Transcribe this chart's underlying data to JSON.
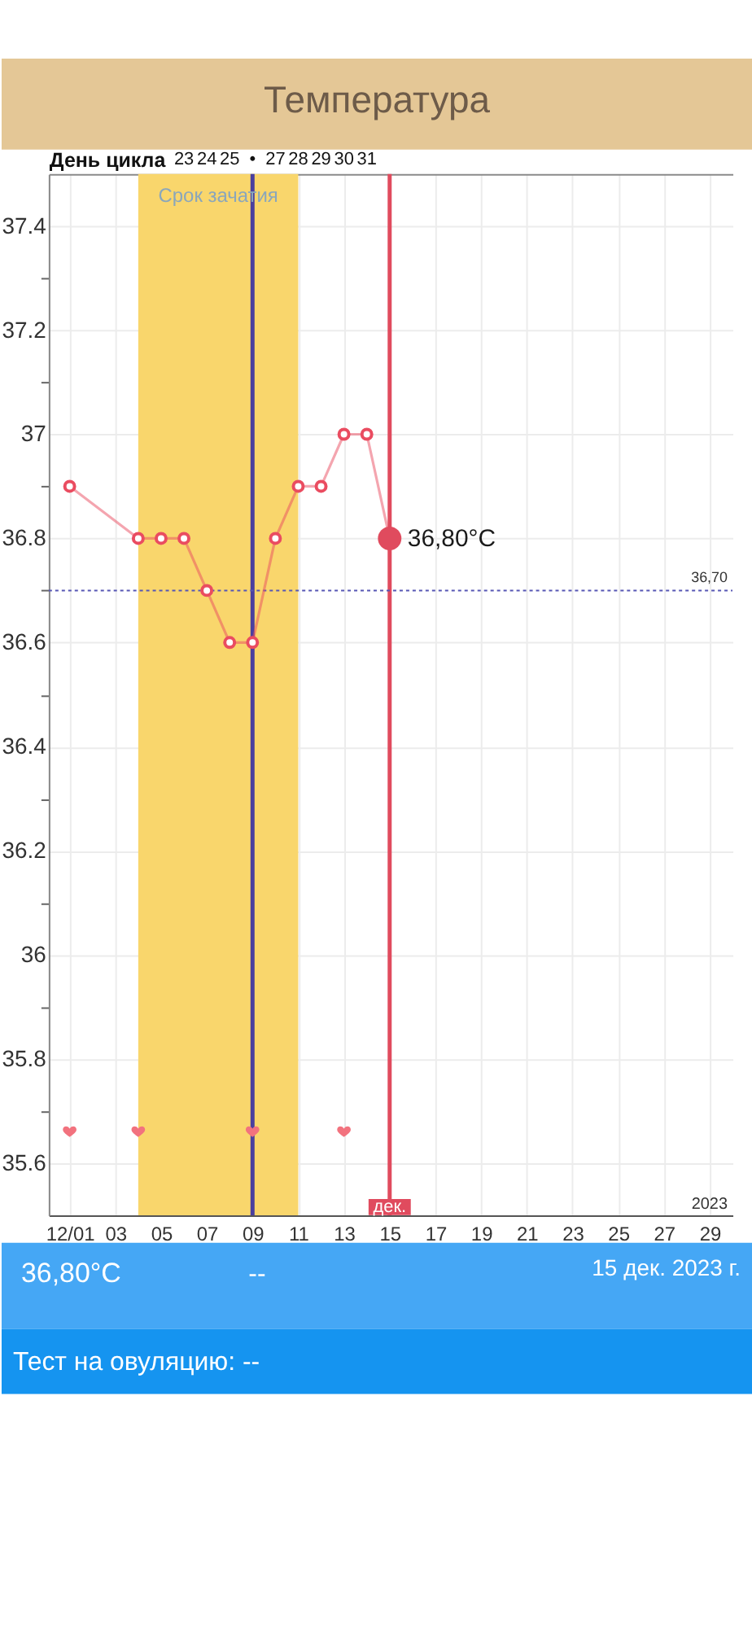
{
  "chart_data": {
    "type": "line",
    "title": "Температура",
    "x2label": "День цикла",
    "xlim": [
      "2023-11-30T02:00",
      "2023-12-30"
    ],
    "xticks": [
      {
        "value": "2023-12-01",
        "label": "12/01"
      },
      {
        "value": "2023-12-03",
        "label": "03"
      },
      {
        "value": "2023-12-05",
        "label": "05"
      },
      {
        "value": "2023-12-07",
        "label": "07"
      },
      {
        "value": "2023-12-09",
        "label": "09"
      },
      {
        "value": "2023-12-11",
        "label": "11"
      },
      {
        "value": "2023-12-13",
        "label": "13"
      },
      {
        "value": "2023-12-15",
        "label": "15"
      },
      {
        "value": "2023-12-17",
        "label": "17"
      },
      {
        "value": "2023-12-19",
        "label": "19"
      },
      {
        "value": "2023-12-21",
        "label": "21"
      },
      {
        "value": "2023-12-23",
        "label": "23"
      },
      {
        "value": "2023-12-25",
        "label": "25"
      },
      {
        "value": "2023-12-27",
        "label": "27"
      },
      {
        "value": "2023-12-29",
        "label": "29"
      }
    ],
    "x2lim": [
      17.08,
      47
    ],
    "x2ticks": [
      23,
      24,
      25,
      {
        "value": 26,
        "label": "•"
      },
      27,
      28,
      29,
      30,
      31
    ],
    "ylim": [
      35.5,
      37.5
    ],
    "yticks": [
      35.6,
      {
        "value": 35.7,
        "label": null
      },
      35.8,
      {
        "value": 35.9,
        "label": null
      },
      36,
      {
        "value": 36.1,
        "label": null
      },
      36.2,
      {
        "value": 36.3,
        "label": null
      },
      36.4,
      {
        "value": 36.5,
        "label": null
      },
      36.6,
      {
        "value": 36.7,
        "label": null
      },
      36.8,
      {
        "value": 36.9,
        "label": null
      },
      37,
      {
        "value": 37.1,
        "label": null
      },
      37.2,
      {
        "value": 37.3,
        "label": null
      },
      37.4
    ],
    "grid": true,
    "bands": [
      {
        "axis": "x",
        "from": "2023-12-04",
        "to": "2023-12-11",
        "label": "Срок зачатия",
        "color": "#f9d66c"
      }
    ],
    "ref_lines": [
      {
        "axis": "x",
        "value": "2023-12-09",
        "color": "#4a3f9f"
      },
      {
        "axis": "x",
        "value": "2023-12-15",
        "label": "дек.",
        "color": "#e04b5e"
      },
      {
        "axis": "y",
        "value": 36.7,
        "label": "36,70",
        "color": "#5656b4",
        "line_style": "dotted"
      }
    ],
    "series": [
      {
        "marker": "circle",
        "color": "#ea4c60",
        "x": [
          "2023-12-01",
          "2023-12-04",
          "2023-12-05",
          "2023-12-06",
          "2023-12-07",
          "2023-12-08",
          "2023-12-09",
          "2023-12-10",
          "2023-12-11",
          "2023-12-12",
          "2023-12-13",
          "2023-12-14",
          "2023-12-15"
        ],
        "values": [
          36.9,
          36.8,
          36.8,
          36.8,
          36.7,
          36.6,
          36.6,
          36.8,
          36.9,
          36.9,
          37.0,
          37.0,
          36.8
        ]
      },
      {
        "type": "scatter",
        "marker": "circle",
        "color": "#e04b5e",
        "x": [
          "2023-12-15"
        ],
        "values": [
          36.8
        ]
      },
      {
        "type": "scatter",
        "color": "#f2727e",
        "x": [
          "2023-12-01",
          "2023-12-04",
          "2023-12-09",
          "2023-12-13"
        ],
        "values": [
          35.66,
          35.66,
          35.66,
          35.66
        ]
      }
    ],
    "annotations": [
      {
        "text": "36,80°C",
        "x": "2023-12-15",
        "y": 36.8
      },
      "2023",
      "36,80°C",
      "--",
      "15 дек. 2023 г.",
      "Тест на овуляцию: --"
    ]
  }
}
